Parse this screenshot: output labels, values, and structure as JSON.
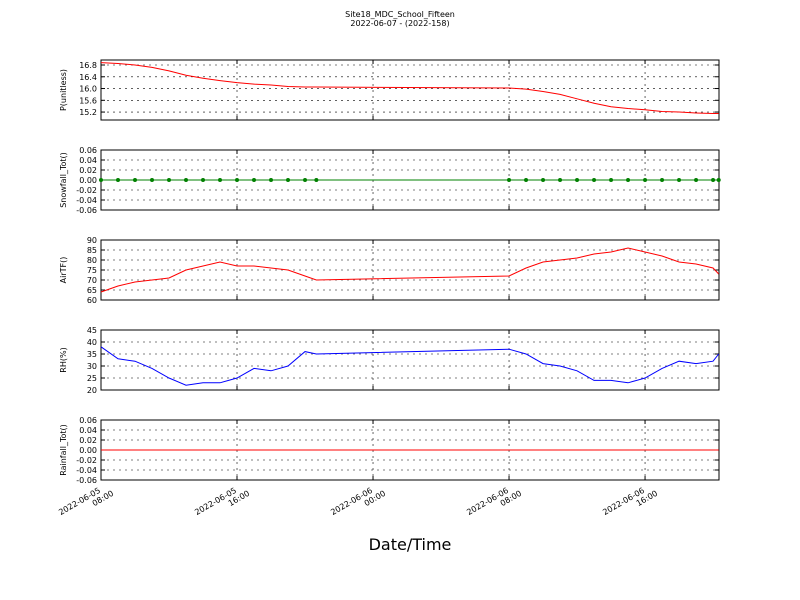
{
  "chart_data": [
    {
      "type": "line",
      "title": "Site18_MDC_School_Fifteen",
      "subtitle": "2022-06-07 - (2022-158)",
      "ylabel": "P(unitless)",
      "x": [
        "2022-06-05 08:00",
        "2022-06-05 09:00",
        "2022-06-05 10:00",
        "2022-06-05 11:00",
        "2022-06-05 12:00",
        "2022-06-05 13:00",
        "2022-06-05 14:00",
        "2022-06-05 15:00",
        "2022-06-05 16:00",
        "2022-06-05 17:00",
        "2022-06-05 18:00",
        "2022-06-05 19:00",
        "2022-06-05 20:00",
        "2022-06-05 20:40",
        "2022-06-06 08:00",
        "2022-06-06 09:00",
        "2022-06-06 10:00",
        "2022-06-06 11:00",
        "2022-06-06 12:00",
        "2022-06-06 13:00",
        "2022-06-06 14:00",
        "2022-06-06 15:00",
        "2022-06-06 16:00",
        "2022-06-06 17:00",
        "2022-06-06 18:00",
        "2022-06-06 19:00",
        "2022-06-06 20:00",
        "2022-06-06 20:20"
      ],
      "series": [
        {
          "name": "P",
          "color": "#ff0000",
          "markers": false,
          "values": [
            16.88,
            16.85,
            16.8,
            16.72,
            16.6,
            16.45,
            16.35,
            16.27,
            16.2,
            16.15,
            16.12,
            16.07,
            16.05,
            16.05,
            16.02,
            15.98,
            15.9,
            15.8,
            15.65,
            15.5,
            15.38,
            15.32,
            15.28,
            15.22,
            15.2,
            15.17,
            15.15,
            15.15
          ]
        }
      ],
      "xlim": [
        "2022-06-05 08:00",
        "2022-06-06 20:21"
      ],
      "xticks": [
        "2022-06-05 08:00",
        "2022-06-05 16:00",
        "2022-06-06 00:00",
        "2022-06-06 08:00",
        "2022-06-06 16:00"
      ],
      "ylim": [
        14.93,
        16.97
      ],
      "yticks": [
        15.2,
        15.6,
        {
          "value": 16,
          "label": "16.0"
        },
        16.4,
        16.8
      ],
      "grid": true
    },
    {
      "type": "line",
      "ylabel": "Snowfall_Tot()",
      "x": [
        "2022-06-05 08:00",
        "2022-06-05 09:00",
        "2022-06-05 10:00",
        "2022-06-05 11:00",
        "2022-06-05 12:00",
        "2022-06-05 13:00",
        "2022-06-05 14:00",
        "2022-06-05 15:00",
        "2022-06-05 16:00",
        "2022-06-05 17:00",
        "2022-06-05 18:00",
        "2022-06-05 19:00",
        "2022-06-05 20:00",
        "2022-06-05 20:40",
        "2022-06-06 08:00",
        "2022-06-06 09:00",
        "2022-06-06 10:00",
        "2022-06-06 11:00",
        "2022-06-06 12:00",
        "2022-06-06 13:00",
        "2022-06-06 14:00",
        "2022-06-06 15:00",
        "2022-06-06 16:00",
        "2022-06-06 17:00",
        "2022-06-06 18:00",
        "2022-06-06 19:00",
        "2022-06-06 20:00",
        "2022-06-06 20:20"
      ],
      "series": [
        {
          "name": "Snowfall_Tot",
          "color": "#008000",
          "markers": true,
          "values": [
            0,
            0,
            0,
            0,
            0,
            0,
            0,
            0,
            0,
            0,
            0,
            0,
            0,
            0,
            0,
            0,
            0,
            0,
            0,
            0,
            0,
            0,
            0,
            0,
            0,
            0,
            0,
            0
          ]
        }
      ],
      "xlim": [
        "2022-06-05 08:00",
        "2022-06-06 20:21"
      ],
      "xticks": [
        "2022-06-05 08:00",
        "2022-06-05 16:00",
        "2022-06-06 00:00",
        "2022-06-06 08:00",
        "2022-06-06 16:00"
      ],
      "ylim": [
        -0.06,
        0.06
      ],
      "yticks": [
        -0.06,
        -0.04,
        -0.02,
        {
          "value": 0,
          "label": "0.00"
        },
        0.02,
        0.04,
        0.06
      ],
      "grid": true
    },
    {
      "type": "line",
      "ylabel": "AirTF()",
      "x": [
        "2022-06-05 08:00",
        "2022-06-05 09:00",
        "2022-06-05 10:00",
        "2022-06-05 11:00",
        "2022-06-05 12:00",
        "2022-06-05 13:00",
        "2022-06-05 14:00",
        "2022-06-05 15:00",
        "2022-06-05 16:00",
        "2022-06-05 17:00",
        "2022-06-05 18:00",
        "2022-06-05 19:00",
        "2022-06-05 20:00",
        "2022-06-05 20:40",
        "2022-06-06 08:00",
        "2022-06-06 09:00",
        "2022-06-06 10:00",
        "2022-06-06 11:00",
        "2022-06-06 12:00",
        "2022-06-06 13:00",
        "2022-06-06 14:00",
        "2022-06-06 15:00",
        "2022-06-06 16:00",
        "2022-06-06 17:00",
        "2022-06-06 18:00",
        "2022-06-06 19:00",
        "2022-06-06 20:00",
        "2022-06-06 20:20"
      ],
      "series": [
        {
          "name": "AirTF",
          "color": "#ff0000",
          "markers": false,
          "values": [
            64,
            67,
            69,
            70,
            71,
            75,
            77,
            79,
            77,
            77,
            76,
            75,
            72,
            70,
            72,
            76,
            79,
            80,
            81,
            83,
            84,
            86,
            84,
            82,
            79,
            78,
            76,
            73
          ]
        }
      ],
      "xlim": [
        "2022-06-05 08:00",
        "2022-06-06 20:21"
      ],
      "xticks": [
        "2022-06-05 08:00",
        "2022-06-05 16:00",
        "2022-06-06 00:00",
        "2022-06-06 08:00",
        "2022-06-06 16:00"
      ],
      "ylim": [
        60,
        90
      ],
      "yticks": [
        60,
        65,
        70,
        75,
        80,
        85,
        90
      ],
      "grid": true
    },
    {
      "type": "line",
      "ylabel": "RH(%)",
      "x": [
        "2022-06-05 08:00",
        "2022-06-05 09:00",
        "2022-06-05 10:00",
        "2022-06-05 11:00",
        "2022-06-05 12:00",
        "2022-06-05 13:00",
        "2022-06-05 14:00",
        "2022-06-05 15:00",
        "2022-06-05 16:00",
        "2022-06-05 17:00",
        "2022-06-05 18:00",
        "2022-06-05 19:00",
        "2022-06-05 20:00",
        "2022-06-05 20:40",
        "2022-06-06 08:00",
        "2022-06-06 09:00",
        "2022-06-06 10:00",
        "2022-06-06 11:00",
        "2022-06-06 12:00",
        "2022-06-06 13:00",
        "2022-06-06 14:00",
        "2022-06-06 15:00",
        "2022-06-06 16:00",
        "2022-06-06 17:00",
        "2022-06-06 18:00",
        "2022-06-06 19:00",
        "2022-06-06 20:00",
        "2022-06-06 20:20"
      ],
      "series": [
        {
          "name": "RH",
          "color": "#0000ff",
          "markers": false,
          "values": [
            38,
            33,
            32,
            29,
            25,
            22,
            23,
            23,
            25,
            29,
            28,
            30,
            36,
            35,
            37,
            35,
            31,
            30,
            28,
            24,
            24,
            23,
            25,
            29,
            32,
            31,
            32,
            35
          ]
        }
      ],
      "xlim": [
        "2022-06-05 08:00",
        "2022-06-06 20:21"
      ],
      "xticks": [
        "2022-06-05 08:00",
        "2022-06-05 16:00",
        "2022-06-06 00:00",
        "2022-06-06 08:00",
        "2022-06-06 16:00"
      ],
      "ylim": [
        20,
        45
      ],
      "yticks": [
        20,
        25,
        30,
        35,
        40,
        45
      ],
      "grid": true
    },
    {
      "type": "line",
      "ylabel": "Rainfall_Tot()",
      "xlabel": "Date/Time",
      "x": [
        "2022-06-05 08:00",
        "2022-06-05 09:00",
        "2022-06-05 10:00",
        "2022-06-05 11:00",
        "2022-06-05 12:00",
        "2022-06-05 13:00",
        "2022-06-05 14:00",
        "2022-06-05 15:00",
        "2022-06-05 16:00",
        "2022-06-05 17:00",
        "2022-06-05 18:00",
        "2022-06-05 19:00",
        "2022-06-05 20:00",
        "2022-06-05 20:40",
        "2022-06-06 08:00",
        "2022-06-06 09:00",
        "2022-06-06 10:00",
        "2022-06-06 11:00",
        "2022-06-06 12:00",
        "2022-06-06 13:00",
        "2022-06-06 14:00",
        "2022-06-06 15:00",
        "2022-06-06 16:00",
        "2022-06-06 17:00",
        "2022-06-06 18:00",
        "2022-06-06 19:00",
        "2022-06-06 20:00",
        "2022-06-06 20:20"
      ],
      "series": [
        {
          "name": "Rainfall_Tot",
          "color": "#ff0000",
          "markers": false,
          "values": [
            0,
            0,
            0,
            0,
            0,
            0,
            0,
            0,
            0,
            0,
            0,
            0,
            0,
            0,
            0,
            0,
            0,
            0,
            0,
            0,
            0,
            0,
            0,
            0,
            0,
            0,
            0,
            0
          ]
        }
      ],
      "xlim": [
        "2022-06-05 08:00",
        "2022-06-06 20:21"
      ],
      "xticks": [
        "2022-06-05 08:00",
        "2022-06-05 16:00",
        "2022-06-06 00:00",
        "2022-06-06 08:00",
        "2022-06-06 16:00"
      ],
      "ylim": [
        -0.06,
        0.06
      ],
      "yticks": [
        -0.06,
        -0.04,
        -0.02,
        {
          "value": 0,
          "label": "0.00"
        },
        0.02,
        0.04,
        0.06
      ],
      "grid": true
    }
  ]
}
